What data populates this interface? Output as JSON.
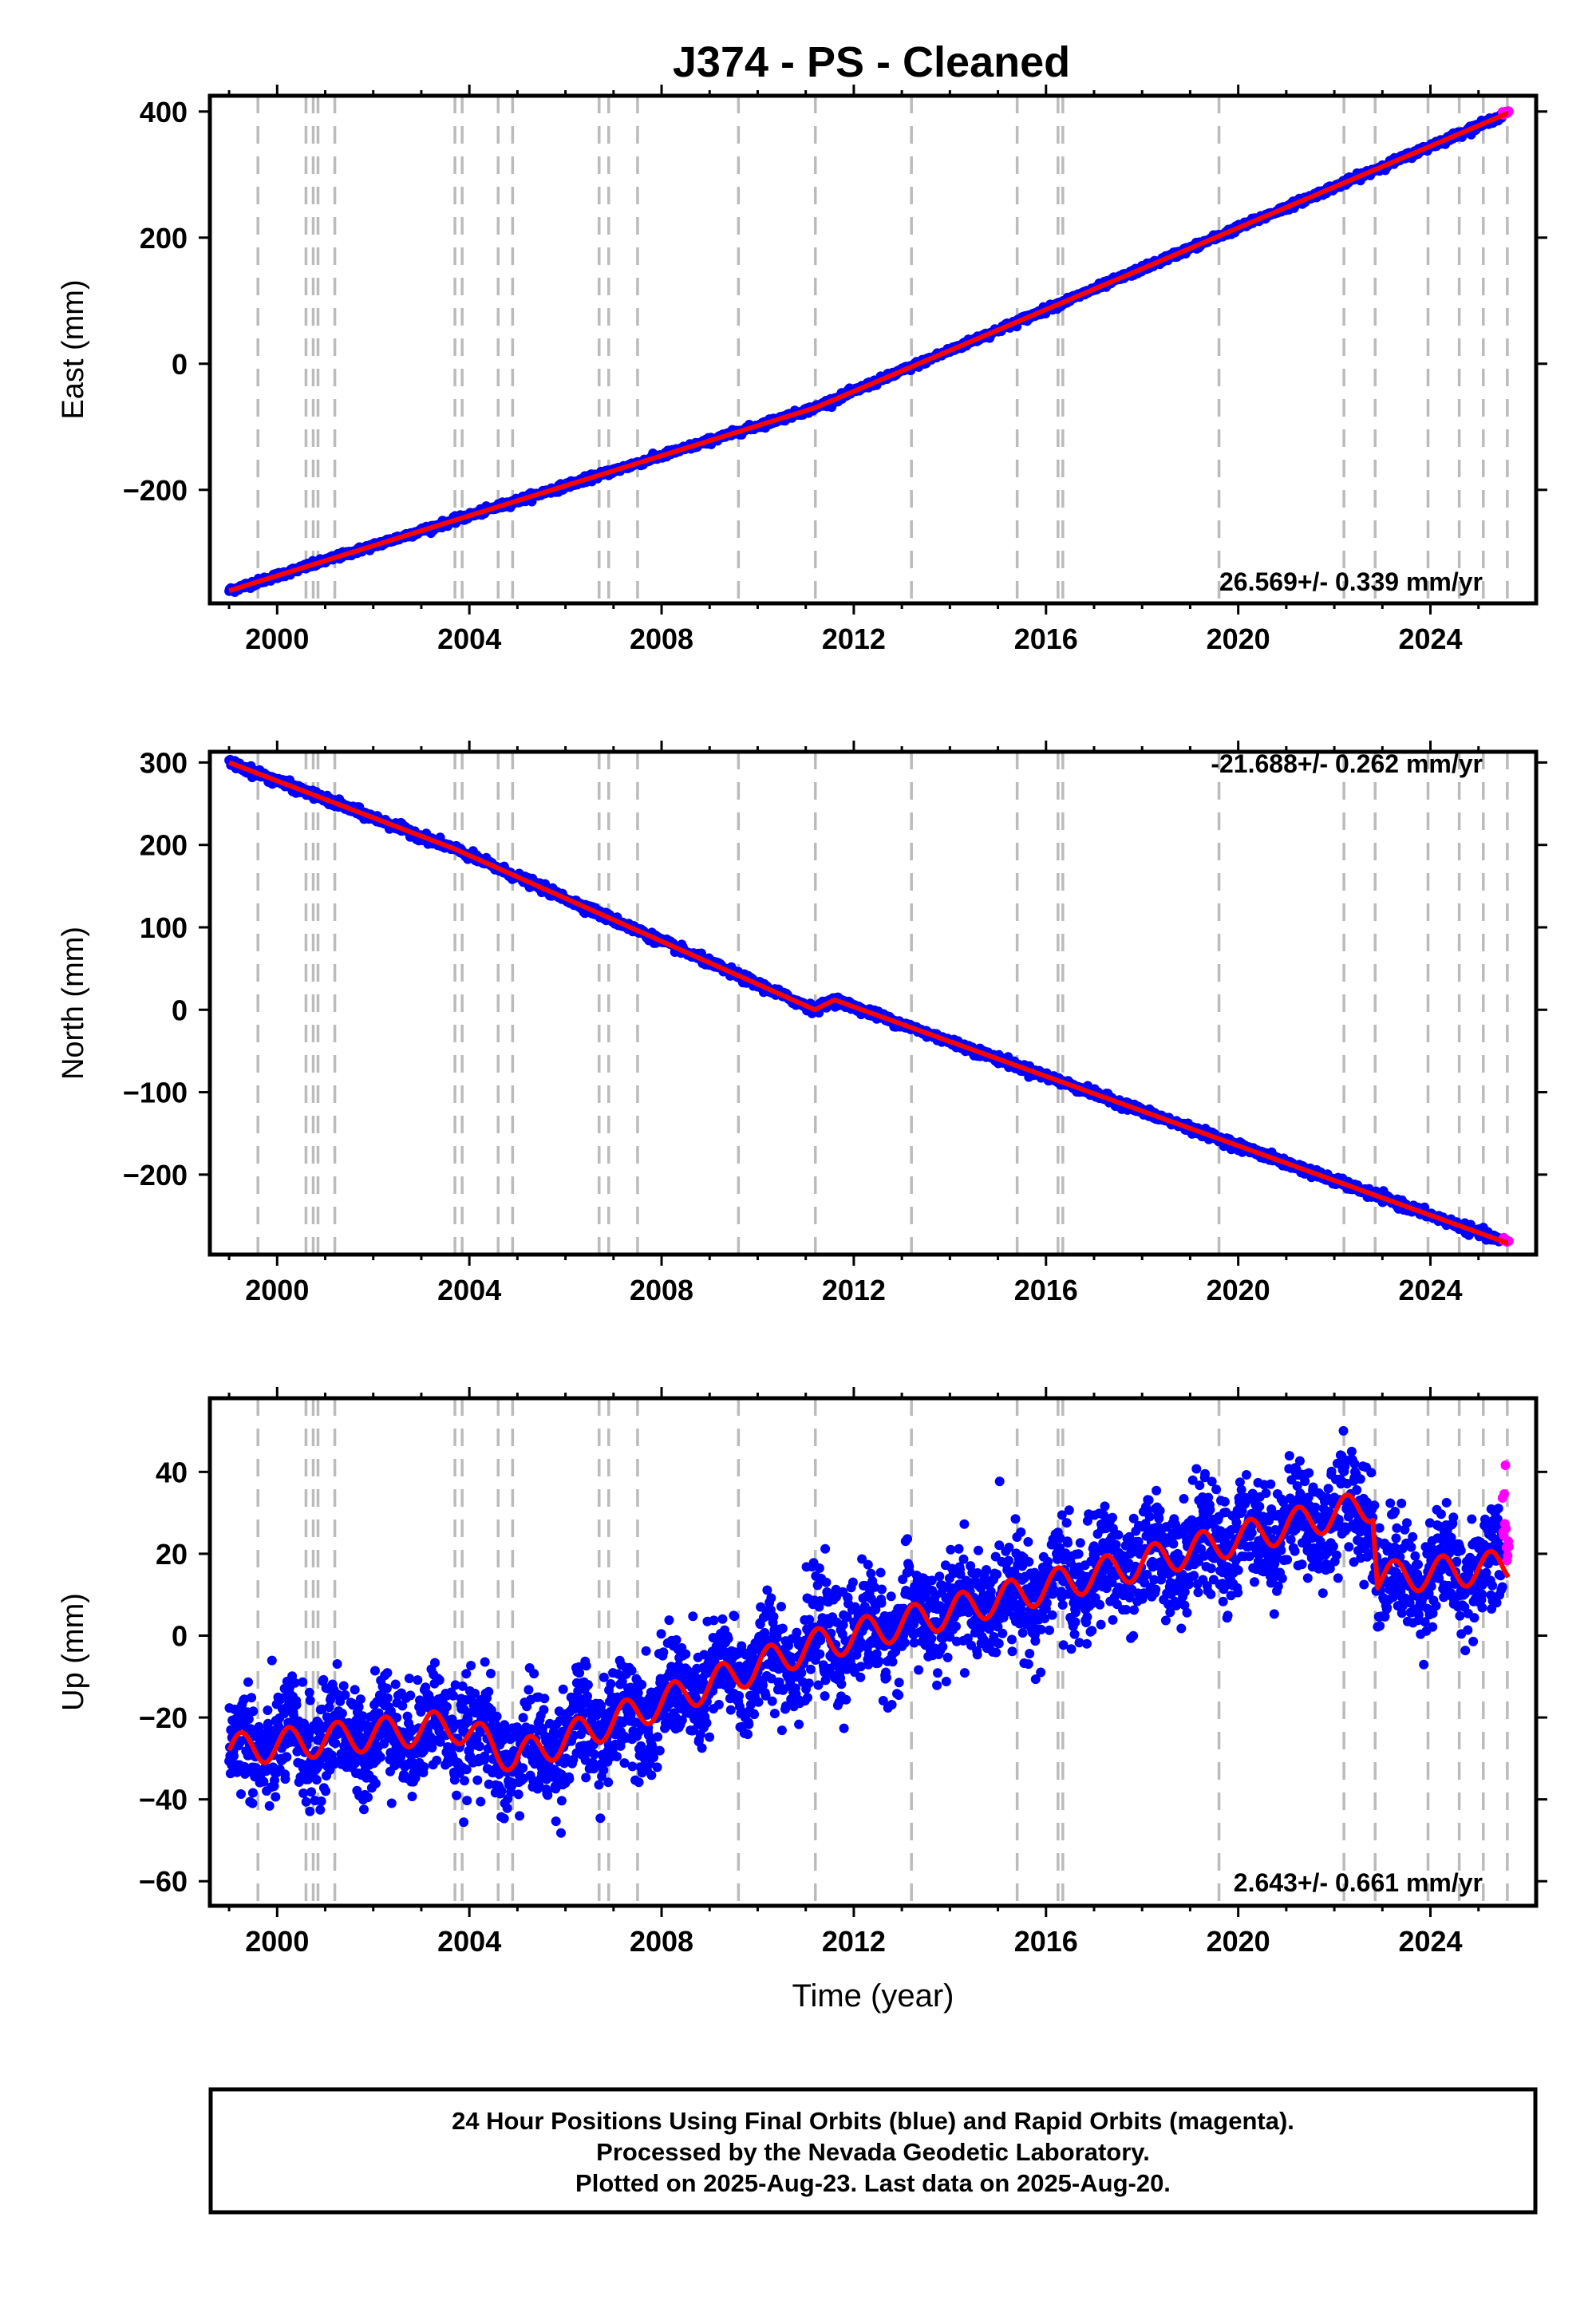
{
  "title": "J374  - PS - Cleaned",
  "colors": {
    "final_orbits": "#0000ff",
    "rapid_orbits": "#ff00ff",
    "model_fit": "#ff0000",
    "event_lines": "#bbbbbb"
  },
  "chart_data": [
    {
      "type": "scatter",
      "ylabel": "East (mm)",
      "x_tick_labels": [
        "2000",
        "2004",
        "2008",
        "2012",
        "2016",
        "2020",
        "2024"
      ],
      "y_tick_labels": [
        "−200",
        "0",
        "200",
        "400"
      ],
      "xlim": [
        1998.6,
        2026.2
      ],
      "ylim": [
        -380,
        425
      ],
      "rate_text": "26.569+/- 0.339 mm/yr",
      "rate_position": "bottom-right",
      "slope": 26.569,
      "offsets": [
        {
          "x": 2011.19,
          "y": 20
        }
      ],
      "scatter_noise": 2.5,
      "seasonal_amplitude": 0,
      "trend_points": [
        {
          "x": 1999.0,
          "y": -360
        },
        {
          "x": 2011.19,
          "y": -70
        },
        {
          "x": 2025.6,
          "y": 397
        }
      ],
      "event_lines": [
        1999.6,
        2000.6,
        2000.75,
        2000.85,
        2001.2,
        2003.7,
        2003.85,
        2004.6,
        2004.9,
        2006.7,
        2006.9,
        2007.5,
        2009.6,
        2011.2,
        2013.2,
        2015.4,
        2016.25,
        2016.35,
        2019.6,
        2022.2,
        2022.85,
        2023.95,
        2024.6,
        2025.1,
        2025.6
      ]
    },
    {
      "type": "scatter",
      "ylabel": "North (mm)",
      "x_tick_labels": [
        "2000",
        "2004",
        "2008",
        "2012",
        "2016",
        "2020",
        "2024"
      ],
      "y_tick_labels": [
        "−200",
        "−100",
        "0",
        "100",
        "200",
        "300"
      ],
      "xlim": [
        1998.6,
        2026.2
      ],
      "ylim": [
        -297,
        313
      ],
      "rate_text": "-21.688+/- 0.262 mm/yr",
      "rate_position": "top-right",
      "slope": -21.688,
      "offsets": [
        {
          "x": 2011.19,
          "y": 13
        }
      ],
      "scatter_noise": 2.5,
      "seasonal_amplitude": 0,
      "trend_points": [
        {
          "x": 1999.0,
          "y": 300
        },
        {
          "x": 2003.7,
          "y": 195
        },
        {
          "x": 2011.19,
          "y": 0
        },
        {
          "x": 2011.6,
          "y": 12
        },
        {
          "x": 2025.6,
          "y": -283
        }
      ],
      "event_lines": [
        1999.6,
        2000.6,
        2000.75,
        2000.85,
        2001.2,
        2003.7,
        2003.85,
        2004.6,
        2004.9,
        2006.7,
        2006.9,
        2007.5,
        2009.6,
        2011.2,
        2013.2,
        2015.4,
        2016.25,
        2016.35,
        2019.6,
        2022.2,
        2022.85,
        2023.95,
        2024.6,
        2025.1,
        2025.6
      ]
    },
    {
      "type": "scatter",
      "ylabel": "Up (mm)",
      "xlabel": "Time (year)",
      "x_tick_labels": [
        "2000",
        "2004",
        "2008",
        "2012",
        "2016",
        "2020",
        "2024"
      ],
      "y_tick_labels": [
        "−60",
        "−40",
        "−20",
        "0",
        "20",
        "40"
      ],
      "xlim": [
        1998.6,
        2026.2
      ],
      "ylim": [
        -66,
        58
      ],
      "rate_text": "2.643+/- 0.661 mm/yr",
      "rate_position": "bottom-right",
      "slope": 2.643,
      "offsets": [
        {
          "x": 2003.7,
          "y": -6
        },
        {
          "x": 2004.95,
          "y": 12
        },
        {
          "x": 2022.85,
          "y": -20
        }
      ],
      "scatter_noise": 6.5,
      "seasonal_amplitude": 4,
      "trend_points": [
        {
          "x": 1999.0,
          "y": -28
        },
        {
          "x": 2003.7,
          "y": -22
        },
        {
          "x": 2004.95,
          "y": -30
        },
        {
          "x": 2011.0,
          "y": -3
        },
        {
          "x": 2022.8,
          "y": 32
        },
        {
          "x": 2022.9,
          "y": 14
        },
        {
          "x": 2025.6,
          "y": 17
        }
      ],
      "event_lines": [
        1999.6,
        2000.6,
        2000.75,
        2000.85,
        2001.2,
        2003.7,
        2003.85,
        2004.6,
        2004.9,
        2006.7,
        2006.9,
        2007.5,
        2009.6,
        2011.2,
        2013.2,
        2015.4,
        2016.25,
        2016.35,
        2019.6,
        2022.2,
        2022.85,
        2023.95,
        2024.6,
        2025.1,
        2025.6
      ]
    }
  ],
  "footer": {
    "line1": "24 Hour Positions Using Final Orbits (blue) and Rapid Orbits (magenta).",
    "line2": "Processed by the Nevada Geodetic Laboratory.",
    "line3": "Plotted on 2025-Aug-23. Last data on 2025-Aug-20."
  }
}
